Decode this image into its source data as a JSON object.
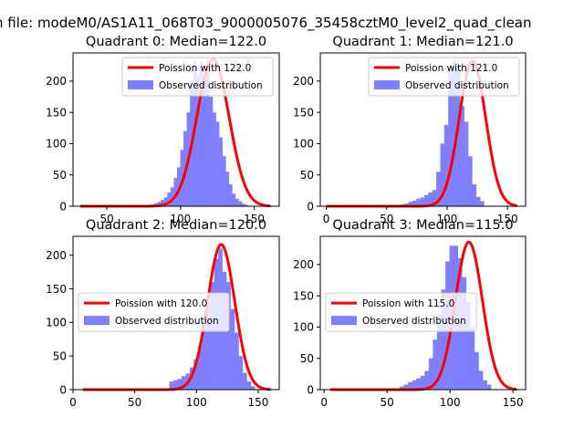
{
  "figure": {
    "suptitle": "n file: modeM0/AS1A11_068T03_9000005076_35458cztM0_level2_quad_clean",
    "colors": {
      "bar": "#8080ff",
      "curve": "#ff0000",
      "axis": "#000000",
      "legend_edge": "#cccccc"
    }
  },
  "chart_data": [
    {
      "type": "bar",
      "title": "Quadrant 0: Median=122.0",
      "median": 122.0,
      "legend": {
        "placement": "top-right",
        "curve_label": "Poission with 122.0",
        "bar_label": "Observed distribution"
      },
      "xlim": [
        27,
        167
      ],
      "ylim": [
        0,
        245
      ],
      "xticks": [
        50,
        100,
        150
      ],
      "yticks": [
        0,
        50,
        100,
        150,
        200
      ],
      "bins": {
        "start": 80,
        "width": 2.2,
        "values": [
          3,
          5,
          7,
          10,
          14,
          22,
          30,
          45,
          62,
          90,
          120,
          150,
          195,
          230,
          210,
          230,
          200,
          230,
          175,
          150,
          135,
          110,
          80,
          55,
          35,
          20,
          12,
          8,
          4,
          2
        ]
      },
      "curve": {
        "mean": 122.0,
        "sd": 11.0,
        "peak": 235,
        "from": 32,
        "to": 161
      }
    },
    {
      "type": "bar",
      "title": "Quadrant 1: Median=121.0",
      "median": 121.0,
      "legend": {
        "placement": "top-right",
        "curve_label": "Poission with 121.0",
        "bar_label": "Observed distribution"
      },
      "xlim": [
        -5,
        165
      ],
      "ylim": [
        0,
        245
      ],
      "xticks": [
        0,
        50,
        100,
        150
      ],
      "yticks": [
        0,
        50,
        100,
        150,
        200
      ],
      "bins": {
        "start": 58,
        "width": 3.3,
        "values": [
          2,
          3,
          4,
          7,
          9,
          12,
          14,
          18,
          22,
          26,
          55,
          100,
          130,
          215,
          230,
          225,
          160,
          135,
          80,
          35,
          15,
          8
        ]
      },
      "curve": {
        "mean": 121.0,
        "sd": 11.0,
        "peak": 232,
        "from": 0,
        "to": 158
      }
    },
    {
      "type": "bar",
      "title": "Quadrant 2: Median=120.0",
      "median": 120.0,
      "legend": {
        "placement": "center-left",
        "curve_label": "Poission with 120.0",
        "bar_label": "Observed distribution"
      },
      "xlim": [
        0,
        167
      ],
      "ylim": [
        0,
        228
      ],
      "xticks": [
        0,
        50,
        100,
        150
      ],
      "yticks": [
        0,
        50,
        100,
        150,
        200
      ],
      "bins": {
        "start": 78,
        "width": 3.3,
        "values": [
          12,
          14,
          16,
          20,
          24,
          33,
          45,
          65,
          95,
          130,
          160,
          195,
          210,
          175,
          160,
          120,
          85,
          50,
          25,
          12,
          5
        ]
      },
      "curve": {
        "mean": 120.0,
        "sd": 11.0,
        "peak": 216,
        "from": 8,
        "to": 160
      }
    },
    {
      "type": "bar",
      "title": "Quadrant 3: Median=115.0",
      "median": 115.0,
      "legend": {
        "placement": "center-left",
        "curve_label": "Poission with 115.0",
        "bar_label": "Observed distribution"
      },
      "xlim": [
        -3,
        160
      ],
      "ylim": [
        0,
        245
      ],
      "xticks": [
        0,
        50,
        100,
        150
      ],
      "yticks": [
        0,
        50,
        100,
        150,
        200
      ],
      "bins": {
        "start": 60,
        "width": 3.3,
        "values": [
          5,
          8,
          12,
          15,
          18,
          22,
          30,
          50,
          80,
          120,
          160,
          205,
          230,
          230,
          210,
          180,
          140,
          100,
          60,
          30,
          15,
          8
        ]
      },
      "curve": {
        "mean": 115.0,
        "sd": 10.7,
        "peak": 236,
        "from": 5,
        "to": 153
      }
    }
  ]
}
